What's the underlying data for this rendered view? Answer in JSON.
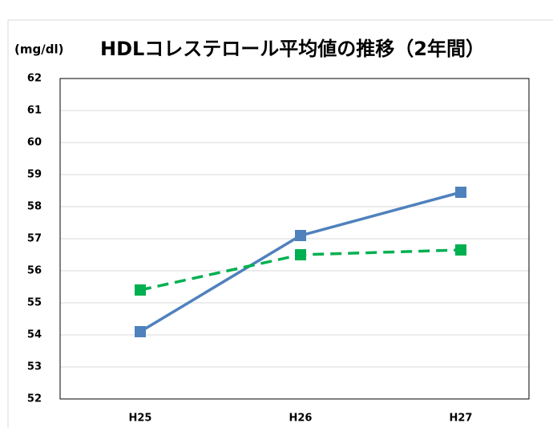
{
  "chart_data": {
    "type": "line",
    "title": "HDLコレステロール平均値の推移（2年間）",
    "y_label": "(mg/dl)",
    "categories": [
      "H25",
      "H26",
      "H27"
    ],
    "series": [
      {
        "color": "#4f81bd",
        "line_style": "solid",
        "values": [
          54.1,
          57.1,
          58.45
        ]
      },
      {
        "color": "#00b050",
        "line_style": "dashed",
        "values": [
          55.4,
          56.5,
          56.65
        ]
      }
    ],
    "ylim": [
      52,
      62
    ],
    "yticks": [
      52,
      53,
      54,
      55,
      56,
      57,
      58,
      59,
      60,
      61,
      62
    ],
    "grid": true
  }
}
